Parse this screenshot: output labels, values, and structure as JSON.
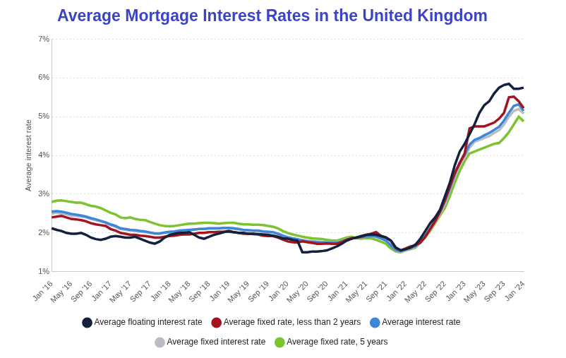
{
  "chart_data": {
    "type": "line",
    "title": "Average Mortgage Interest Rates in the United Kingdom",
    "y_label": "Average interest rate",
    "categories": [
      "Jan '16",
      null,
      null,
      null,
      "May '16",
      null,
      null,
      null,
      "Sep '16",
      null,
      null,
      null,
      "Jan '17",
      null,
      null,
      null,
      "May '17",
      null,
      null,
      null,
      "Sep '17",
      null,
      null,
      null,
      "Jan '18",
      null,
      null,
      null,
      "May '18",
      null,
      null,
      null,
      "Sep '18",
      null,
      null,
      null,
      "Jan '19",
      null,
      null,
      null,
      "May '19",
      null,
      null,
      null,
      "Sep '19",
      null,
      null,
      null,
      "Jan '20",
      null,
      null,
      null,
      "May '20",
      null,
      null,
      null,
      "Sep '20",
      null,
      null,
      null,
      "Jan '21",
      null,
      null,
      null,
      "May '21",
      null,
      null,
      null,
      "Sep '21",
      null,
      null,
      null,
      "Jan '22",
      null,
      null,
      null,
      "May '22",
      null,
      null,
      null,
      "Sep '22",
      null,
      null,
      null,
      "Jan '23",
      null,
      null,
      null,
      "May '23",
      null,
      null,
      null,
      "Sep '23",
      null,
      null,
      null,
      "Jan '24"
    ],
    "series": [
      {
        "name": "Average interest rate",
        "color": "#3d86d8",
        "values": [
          2.55,
          2.56,
          2.55,
          2.52,
          2.49,
          2.47,
          2.45,
          2.42,
          2.38,
          2.35,
          2.31,
          2.27,
          2.22,
          2.18,
          2.12,
          2.1,
          2.08,
          2.07,
          2.05,
          2.04,
          2.01,
          1.99,
          1.99,
          2.01,
          2.03,
          2.04,
          2.06,
          2.07,
          2.08,
          2.09,
          2.1,
          2.1,
          2.12,
          2.12,
          2.12,
          2.13,
          2.13,
          2.12,
          2.1,
          2.08,
          2.07,
          2.06,
          2.06,
          2.04,
          2.03,
          2.02,
          1.98,
          1.93,
          1.89,
          1.86,
          1.84,
          1.8,
          1.78,
          1.77,
          1.76,
          1.75,
          1.75,
          1.74,
          1.74,
          1.78,
          1.83,
          1.86,
          1.88,
          1.89,
          1.91,
          1.92,
          1.91,
          1.86,
          1.8,
          1.68,
          1.56,
          1.53,
          1.57,
          1.61,
          1.66,
          1.78,
          1.93,
          2.12,
          2.32,
          2.55,
          2.82,
          3.15,
          3.52,
          3.82,
          4.02,
          4.28,
          4.4,
          4.45,
          4.52,
          4.58,
          4.66,
          4.74,
          4.9,
          5.1,
          5.28,
          5.32,
          5.15
        ]
      },
      {
        "name": "Average floating interest rate",
        "color": "#14213d",
        "values": [
          2.12,
          2.08,
          2.05,
          2.0,
          1.98,
          1.98,
          2.0,
          1.95,
          1.88,
          1.84,
          1.82,
          1.85,
          1.9,
          1.92,
          1.9,
          1.88,
          1.88,
          1.9,
          1.85,
          1.8,
          1.75,
          1.72,
          1.78,
          1.88,
          1.95,
          1.98,
          2.0,
          2.0,
          2.02,
          1.95,
          1.88,
          1.85,
          1.9,
          1.95,
          1.98,
          2.02,
          2.05,
          2.02,
          2.0,
          2.0,
          1.98,
          1.98,
          1.97,
          1.96,
          1.95,
          1.93,
          1.9,
          1.86,
          1.85,
          1.82,
          1.8,
          1.5,
          1.5,
          1.52,
          1.52,
          1.53,
          1.55,
          1.6,
          1.65,
          1.72,
          1.8,
          1.85,
          1.88,
          1.92,
          1.95,
          1.96,
          1.95,
          1.92,
          1.88,
          1.8,
          1.62,
          1.55,
          1.58,
          1.62,
          1.7,
          1.85,
          2.05,
          2.25,
          2.4,
          2.6,
          2.95,
          3.3,
          3.75,
          4.1,
          4.3,
          4.55,
          4.8,
          5.1,
          5.3,
          5.4,
          5.6,
          5.75,
          5.82,
          5.85,
          5.72,
          5.72,
          5.75
        ]
      },
      {
        "name": "Average fixed interest rate",
        "color": "#b9bcc3",
        "values": [
          2.5,
          2.52,
          2.5,
          2.48,
          2.45,
          2.44,
          2.42,
          2.4,
          2.36,
          2.33,
          2.3,
          2.26,
          2.2,
          2.16,
          2.1,
          2.08,
          2.06,
          2.05,
          2.03,
          2.02,
          2.0,
          1.98,
          1.98,
          2.0,
          2.01,
          2.02,
          2.04,
          2.05,
          2.06,
          2.08,
          2.1,
          2.1,
          2.11,
          2.11,
          2.11,
          2.12,
          2.12,
          2.11,
          2.09,
          2.07,
          2.06,
          2.05,
          2.05,
          2.03,
          2.02,
          2.01,
          1.97,
          1.92,
          1.88,
          1.85,
          1.83,
          1.82,
          1.8,
          1.79,
          1.78,
          1.77,
          1.76,
          1.75,
          1.75,
          1.79,
          1.84,
          1.87,
          1.88,
          1.88,
          1.91,
          1.92,
          1.9,
          1.85,
          1.8,
          1.68,
          1.55,
          1.52,
          1.56,
          1.6,
          1.64,
          1.75,
          1.9,
          2.08,
          2.28,
          2.5,
          2.75,
          3.1,
          3.45,
          3.75,
          3.95,
          4.2,
          4.35,
          4.4,
          4.45,
          4.5,
          4.58,
          4.65,
          4.8,
          5.0,
          5.15,
          5.2,
          5.08
        ]
      },
      {
        "name": "Average fixed rate, less than 2 years",
        "color": "#a3141e",
        "values": [
          2.4,
          2.42,
          2.44,
          2.4,
          2.36,
          2.35,
          2.33,
          2.3,
          2.25,
          2.22,
          2.2,
          2.18,
          2.1,
          2.06,
          2.0,
          1.98,
          1.95,
          1.95,
          1.93,
          1.92,
          1.9,
          1.88,
          1.88,
          1.9,
          1.92,
          1.93,
          1.95,
          1.96,
          1.96,
          1.98,
          2.0,
          2.0,
          2.02,
          2.02,
          2.03,
          2.03,
          2.03,
          2.02,
          2.0,
          1.98,
          1.98,
          1.97,
          1.96,
          1.93,
          1.92,
          1.92,
          1.88,
          1.83,
          1.78,
          1.76,
          1.75,
          1.78,
          1.76,
          1.74,
          1.72,
          1.72,
          1.73,
          1.72,
          1.72,
          1.76,
          1.82,
          1.86,
          1.88,
          1.9,
          1.95,
          1.98,
          2.02,
          1.92,
          1.88,
          1.8,
          1.62,
          1.55,
          1.6,
          1.65,
          1.68,
          1.75,
          1.9,
          2.1,
          2.3,
          2.55,
          2.85,
          3.2,
          3.55,
          3.8,
          4.05,
          4.7,
          4.75,
          4.75,
          4.75,
          4.8,
          4.85,
          4.95,
          5.1,
          5.5,
          5.52,
          5.4,
          5.22
        ]
      },
      {
        "name": "Average fixed rate, 5 years",
        "color": "#7cc42f",
        "values": [
          2.8,
          2.83,
          2.84,
          2.82,
          2.8,
          2.78,
          2.78,
          2.74,
          2.7,
          2.68,
          2.64,
          2.58,
          2.52,
          2.48,
          2.4,
          2.38,
          2.4,
          2.36,
          2.34,
          2.33,
          2.28,
          2.24,
          2.2,
          2.18,
          2.17,
          2.18,
          2.2,
          2.22,
          2.24,
          2.24,
          2.25,
          2.26,
          2.26,
          2.25,
          2.24,
          2.25,
          2.26,
          2.26,
          2.24,
          2.22,
          2.22,
          2.21,
          2.21,
          2.2,
          2.18,
          2.16,
          2.12,
          2.05,
          2.0,
          1.96,
          1.93,
          1.9,
          1.88,
          1.86,
          1.85,
          1.84,
          1.82,
          1.8,
          1.8,
          1.84,
          1.88,
          1.9,
          1.86,
          1.85,
          1.87,
          1.86,
          1.82,
          1.77,
          1.72,
          1.6,
          1.52,
          1.5,
          1.55,
          1.58,
          1.62,
          1.75,
          1.88,
          2.05,
          2.25,
          2.45,
          2.65,
          2.95,
          3.3,
          3.6,
          3.85,
          4.05,
          4.1,
          4.15,
          4.2,
          4.25,
          4.3,
          4.32,
          4.45,
          4.6,
          4.8,
          5.0,
          4.88
        ]
      }
    ],
    "ylim": [
      1,
      7
    ],
    "yticks": [
      {
        "value": 1,
        "label": "1%"
      },
      {
        "value": 2,
        "label": "2%"
      },
      {
        "value": 3,
        "label": "3%"
      },
      {
        "value": 4,
        "label": "4%"
      },
      {
        "value": 5,
        "label": "5%"
      },
      {
        "value": 6,
        "label": "6%"
      },
      {
        "value": 7,
        "label": "7%"
      }
    ],
    "grid": true,
    "legend": "bottom"
  }
}
